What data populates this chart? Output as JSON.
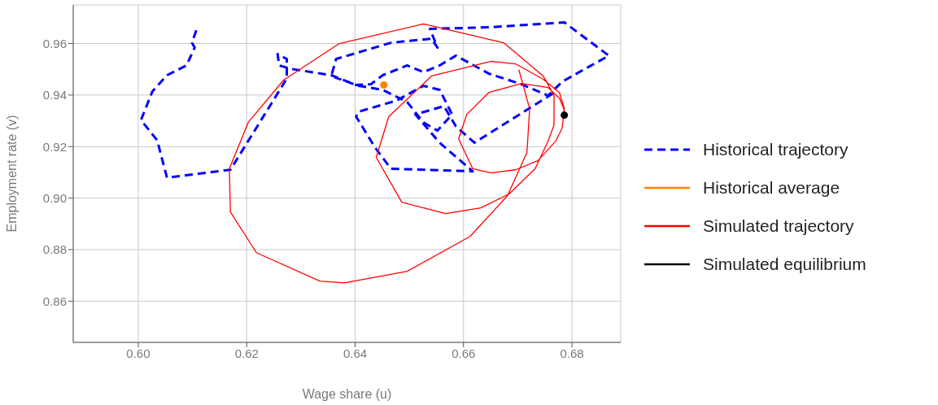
{
  "chart_data": {
    "type": "line",
    "xlabel": "Wage share (u)",
    "ylabel": "Employment rate (v)",
    "xlim": [
      0.588,
      0.689
    ],
    "xticks": [
      {
        "value": 0.6,
        "label": "0.60"
      },
      {
        "value": 0.62,
        "label": "0.62"
      },
      {
        "value": 0.64,
        "label": "0.64"
      },
      {
        "value": 0.66,
        "label": "0.66"
      },
      {
        "value": 0.68,
        "label": "0.68"
      }
    ],
    "ylim": [
      0.844,
      0.975
    ],
    "yticks": [
      {
        "value": 0.86,
        "label": "0.86"
      },
      {
        "value": 0.88,
        "label": "0.88"
      },
      {
        "value": 0.9,
        "label": "0.90"
      },
      {
        "value": 0.92,
        "label": "0.92"
      },
      {
        "value": 0.94,
        "label": "0.94"
      },
      {
        "value": 0.96,
        "label": "0.96"
      }
    ],
    "grid": true,
    "legend": "right",
    "series": [
      {
        "name": "Historical trajectory",
        "color": "#0000ff",
        "line_style": "dashed",
        "marker": "none",
        "x": [
          0.6107,
          0.6099,
          0.6104,
          0.6089,
          0.6053,
          0.6026,
          0.6005,
          0.6035,
          0.6053,
          0.617,
          0.6274,
          0.6274,
          0.6257,
          0.626,
          0.6281,
          0.6356,
          0.6402,
          0.6429,
          0.6451,
          0.6496,
          0.6526,
          0.6556,
          0.6586,
          0.6647,
          0.6707,
          0.6756,
          0.6782,
          0.6868,
          0.6786,
          0.6647,
          0.6538,
          0.6552,
          0.6541,
          0.6466,
          0.6365,
          0.6356,
          0.6406,
          0.6451,
          0.6496,
          0.6526,
          0.6552,
          0.6579,
          0.6556,
          0.6526,
          0.6477,
          0.6406,
          0.6402,
          0.6436,
          0.6466,
          0.6617,
          0.6556,
          0.6511,
          0.6564,
          0.6586,
          0.662,
          0.6771
        ],
        "values": [
          0.9651,
          0.9603,
          0.9584,
          0.9515,
          0.9477,
          0.9414,
          0.9303,
          0.9224,
          0.9079,
          0.911,
          0.9464,
          0.954,
          0.9559,
          0.9515,
          0.9502,
          0.9477,
          0.9439,
          0.9442,
          0.9477,
          0.9515,
          0.9489,
          0.9515,
          0.9553,
          0.9483,
          0.9442,
          0.9398,
          0.9452,
          0.9553,
          0.9682,
          0.9663,
          0.9657,
          0.9584,
          0.9619,
          0.9603,
          0.954,
          0.9474,
          0.9436,
          0.942,
          0.9373,
          0.9294,
          0.9262,
          0.9325,
          0.942,
          0.9436,
          0.9379,
          0.9335,
          0.9316,
          0.9199,
          0.9114,
          0.9104,
          0.9215,
          0.9325,
          0.9357,
          0.9278,
          0.9215,
          0.9414
        ]
      },
      {
        "name": "Historical average",
        "type": "scatter",
        "color": "#ff8000",
        "marker": "circle",
        "x": [
          0.6453
        ],
        "values": [
          0.9439
        ]
      },
      {
        "name": "Simulated trajectory",
        "color": "#ff0000",
        "line_style": "solid",
        "marker": "none",
        "x": [
          0.6702,
          0.6722,
          0.6717,
          0.6681,
          0.6612,
          0.6496,
          0.638,
          0.6335,
          0.6218,
          0.617,
          0.6168,
          0.6203,
          0.6268,
          0.6371,
          0.6526,
          0.6674,
          0.6747,
          0.6767,
          0.6767,
          0.6756,
          0.6732,
          0.6684,
          0.6632,
          0.6567,
          0.6486,
          0.6439,
          0.6462,
          0.6541,
          0.6651,
          0.6696,
          0.6747,
          0.6777,
          0.6786,
          0.6782,
          0.677,
          0.6737,
          0.6696,
          0.6651,
          0.6617,
          0.6591,
          0.6606,
          0.6647,
          0.6707,
          0.6756,
          0.6777,
          0.6785,
          0.6786
        ],
        "values": [
          0.9499,
          0.9347,
          0.9177,
          0.9009,
          0.8851,
          0.8716,
          0.8671,
          0.8678,
          0.8788,
          0.8946,
          0.9114,
          0.9294,
          0.9458,
          0.96,
          0.9676,
          0.9603,
          0.9474,
          0.9398,
          0.9284,
          0.9221,
          0.9114,
          0.9016,
          0.8962,
          0.894,
          0.8984,
          0.9158,
          0.9316,
          0.9474,
          0.9531,
          0.9521,
          0.9461,
          0.941,
          0.9347,
          0.9272,
          0.9221,
          0.9145,
          0.911,
          0.9098,
          0.9114,
          0.923,
          0.9325,
          0.941,
          0.9445,
          0.9429,
          0.9388,
          0.9347,
          0.9322
        ]
      },
      {
        "name": "Simulated equilibrium",
        "type": "scatter",
        "color": "#000000",
        "marker": "circle",
        "x": [
          0.6786
        ],
        "values": [
          0.9322
        ]
      }
    ]
  }
}
